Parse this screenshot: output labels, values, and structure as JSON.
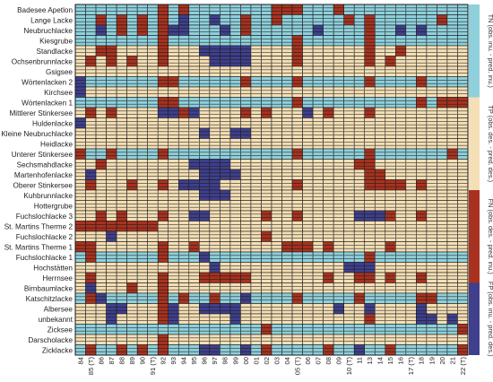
{
  "colors": {
    "TN": "#8ed0dc",
    "TP": "#f4dfb6",
    "FN": "#a8321f",
    "FP": "#3f3f8c",
    "cell_border": "#1a1a1a",
    "sub_line": "#1a1a1a"
  },
  "chart_data": {
    "type": "heatmap",
    "title": "",
    "legend": {
      "placement": "right",
      "entries": [
        "TN (obs. inu. - pred. inu.)",
        "TP (obs. des. - pred. des.)",
        "FN (obs. des. - pred. inu.)",
        "FP (obs. inu. - pred. des.)"
      ]
    },
    "x_labels": [
      "84",
      "85 (T)",
      "86",
      "87",
      "88",
      "89",
      "90",
      "91 (T)",
      "92",
      "93",
      "94",
      "95",
      "96",
      "97",
      "98",
      "99",
      "00",
      "01",
      "02",
      "03",
      "04",
      "05 (T)",
      "06",
      "07",
      "08",
      "09",
      "10 (T)",
      "11",
      "13",
      "14",
      "15",
      "16",
      "17 (T)",
      "18",
      "19",
      "20",
      "21",
      "22 (T)"
    ],
    "sites": [
      {
        "name": "Badesee Apetlon",
        "cells": "NNNNNNNNRNNNNNNNNNNRRNNNNNNNNNNNNNNNNN",
        "special": {
          "8": "F",
          "10": "F",
          "20": "F",
          "21": "F",
          "25": "F"
        }
      },
      {
        "name": "Lange Lacke",
        "cells": "NNNNNNNNNNNNNNNNNNNNNNNNNNNNNNNNNNNNNN",
        "special": {
          "2": "F",
          "4": "F",
          "6": "F",
          "8": "F",
          "10": "P",
          "13": "P",
          "16": "F",
          "19": "F",
          "26": "F",
          "28": "F",
          "35": "F"
        }
      },
      {
        "name": "Neubruchlacke",
        "cells": "NNNNNNNNNNNNNNNNNNNNNNNNNNNNNNNNNNNNNN",
        "special": {
          "2": "P",
          "4": "F",
          "6": "F",
          "8": "F",
          "9": "P",
          "10": "P",
          "14": "P",
          "16": "F",
          "23": "P",
          "28": "F",
          "31": "P",
          "33": "P"
        }
      },
      {
        "name": "Kiesgrube",
        "cells": "NNNNNNNNNNNNNNNNNNNNNNNNNNNNNNNNNNNNNN",
        "special": {
          "8": "F",
          "21": "F",
          "28": "F"
        }
      },
      {
        "name": "Standlacke",
        "cells": "TTTTTTTTTTTTTTTTTTTTTTTTTTTTTTTTTTTTTT",
        "special": {
          "2": "F",
          "3": "F",
          "8": "F",
          "12": "P",
          "13": "P",
          "14": "P",
          "15": "P",
          "16": "P",
          "21": "F",
          "28": "F",
          "31": "F"
        }
      },
      {
        "name": "Ochsenbrunnlacke",
        "cells": "TTTTTTTTTTTTTTTTTTTTTTTTTTTTTTTTTTTTTT",
        "special": {
          "1": "F",
          "3": "F",
          "5": "F",
          "8": "F",
          "13": "P",
          "14": "P",
          "15": "P",
          "16": "P",
          "21": "F",
          "28": "F",
          "30": "F"
        }
      },
      {
        "name": "Gsigsee",
        "cells": "TTTTTTTTTTTTTTTTTTTTTTTTTTTTTTTTTTTTTT",
        "special": {}
      },
      {
        "name": "Wörtenlacken 2",
        "cells": "NNNNNNNNNNNNNNNNNNNNNNNNNNNNNNNNNNNNNN",
        "special": {
          "0": "P",
          "8": "F",
          "9": "F",
          "16": "F",
          "21": "F",
          "28": "F",
          "33": "F"
        }
      },
      {
        "name": "Kirchsee",
        "cells": "TTTTTTTTTTTTTTTTTTTTTTTTTTTTTTTTTTTTTT",
        "special": {
          "0": "P"
        }
      },
      {
        "name": "Wörtenlacken 1",
        "cells": "NNNNNNNNNNNNNNNNNNNNNNNNNNNNNNNNNNNNNN",
        "special": {
          "8": "F",
          "9": "F",
          "21": "F",
          "33": "F",
          "35": "F",
          "36": "F",
          "37": "F"
        }
      },
      {
        "name": "Mittlerer Stinkersee",
        "cells": "TTTTTTTTTTTTTTTTTTTTTTTTTTTTTTTTTTTTTT",
        "special": {
          "1": "F",
          "3": "F",
          "8": "P",
          "9": "P",
          "10": "F",
          "11": "P",
          "16": "F",
          "18": "F",
          "22": "P",
          "24": "F",
          "28": "F"
        }
      },
      {
        "name": "Huldenlacke",
        "cells": "TTTTTTTTTTTTTTTTTTTTTTTTTTTTTTTTTTTTTT",
        "special": {
          "0": "P"
        }
      },
      {
        "name": "Kleine Neubruchlacke",
        "cells": "TTTTTTTTTTTTTTTTTTTTTTTTTTTTTTTTTTTTTT",
        "special": {
          "12": "P",
          "15": "P",
          "16": "P"
        }
      },
      {
        "name": "Heidlacke",
        "cells": "TTTTTTTTTTTTTTTTTTTTTTTTTTTTTTTTTTTTTT",
        "special": {}
      },
      {
        "name": "Unterer Stinkersee",
        "cells": "NNNNNNNNNNNNNNNNNNNNNNNNNNNNNNNNNNNNNN",
        "special": {
          "0": "F",
          "3": "F",
          "8": "F",
          "21": "F",
          "28": "F",
          "36": "F"
        }
      },
      {
        "name": "Sechsmahdlacke",
        "cells": "TTTTTTTTTTTTTTTTTTTTTTTTTTTTTTTTTTTTTT",
        "special": {
          "2": "F",
          "11": "P",
          "12": "P",
          "13": "P",
          "14": "P",
          "27": "F",
          "28": "F"
        }
      },
      {
        "name": "Martenhofenlacke",
        "cells": "TTTTTTTTTTTTTTTTTTTTTTTTTTTTTTTTTTTTTT",
        "special": {
          "1": "P",
          "12": "P",
          "13": "P",
          "14": "P",
          "15": "P",
          "28": "F",
          "29": "F"
        }
      },
      {
        "name": "Oberer Stinkersee",
        "cells": "TTTTTTTTTTTTTTTTTTTTTTTTTTTTTTTTTTTTTT",
        "special": {
          "1": "F",
          "5": "F",
          "8": "F",
          "10": "P",
          "11": "P",
          "12": "P",
          "13": "P",
          "21": "F",
          "28": "F",
          "29": "F",
          "30": "F",
          "31": "F",
          "33": "F"
        }
      },
      {
        "name": "Kuhbrunnlacke",
        "cells": "TTTTTTTTTTTTTTTTTTTTTTTTTTTTTTTTTTTTTT",
        "special": {
          "12": "P",
          "13": "P",
          "14": "P"
        }
      },
      {
        "name": "Hottergrube",
        "cells": "TTTTTTTTTTTTTTTTTTTTTTTTTTTTTTTTTTTTTT",
        "special": {}
      },
      {
        "name": "Fuchslochlacke 3",
        "cells": "TTTTTTTTTTTTTTTTTTTTTTTTTTTTTTTTTTTTTT",
        "special": {
          "2": "F",
          "4": "F",
          "8": "F",
          "11": "P",
          "12": "P",
          "18": "F",
          "21": "F",
          "27": "P",
          "28": "P",
          "29": "P",
          "30": "F",
          "33": "F"
        }
      },
      {
        "name": "St. Martins Therme 2",
        "cells": "FFFFFFFFTTTTTTTTTTTTTTTTTTTTTTTTTTTTTT",
        "special": {}
      },
      {
        "name": "Fuchslochlacke 2",
        "cells": "TTTTTTTTTTTTTTTTTTTTTTTTTTTTTTTTTTTTTT",
        "special": {
          "3": "P",
          "18": "F"
        }
      },
      {
        "name": "St. Martins Therme 1",
        "cells": "TTTTTTTTTTTTTTTTTTTTTTTTTTTTTTTTTTTTTT",
        "special": {
          "0": "F",
          "1": "F",
          "8": "F",
          "11": "F",
          "20": "F",
          "21": "F",
          "22": "F",
          "24": "F",
          "30": "F"
        }
      },
      {
        "name": "Fuchslochlacke 1",
        "cells": "NNNNNNNNNNNNNNNNNNNNNNNNNNNNNNNNNNNNNN",
        "special": {
          "1": "F",
          "8": "F",
          "12": "P",
          "28": "F"
        }
      },
      {
        "name": "Hochstätten",
        "cells": "TTTTTTTTTTTTTTTTTTTTTTTTTTTTTTTTTTTTTT",
        "special": {
          "13": "P",
          "26": "P",
          "27": "P",
          "28": "P"
        }
      },
      {
        "name": "Herrnsee",
        "cells": "TTTTTTTTTTTTTTTTTTTTTTTTTTTTTTTTTTTTTT",
        "special": {
          "1": "F",
          "8": "F",
          "12": "F",
          "13": "F",
          "14": "F",
          "15": "F",
          "16": "F",
          "24": "F",
          "27": "F",
          "28": "F",
          "30": "F",
          "33": "F"
        }
      },
      {
        "name": "Birnbaumlacke",
        "cells": "TTTTTTTTTTTTTTTTTTTTTTTTTTTTTTTTTTTTTT",
        "special": {
          "1": "P",
          "5": "F",
          "8": "F"
        }
      },
      {
        "name": "Katschitzlacke",
        "cells": "NNNNNNNNNNNNNNNNNNNNNNNNNNNNNNNNNNNNNN",
        "special": {
          "1": "F",
          "2": "P",
          "8": "F",
          "10": "F",
          "13": "F",
          "16": "P",
          "21": "F",
          "27": "F",
          "33": "F",
          "34": "F"
        }
      },
      {
        "name": "Albersee",
        "cells": "TTTTTTTTTTTTTTTTTTTTTTTTTTTTTTTTTTTTTT",
        "special": {
          "3": "P",
          "4": "P",
          "8": "F",
          "9": "P",
          "12": "P",
          "13": "P",
          "14": "P",
          "15": "P",
          "25": "P",
          "28": "P",
          "33": "P"
        }
      },
      {
        "name": "unbekannt",
        "cells": "TTTTTTTTTTTTTTTTTTTTTTTTTTTTTTTTTTTTTT",
        "special": {
          "3": "P",
          "8": "F",
          "9": "P",
          "15": "P",
          "28": "F",
          "33": "P",
          "34": "P",
          "36": "P"
        }
      },
      {
        "name": "Zicksee",
        "cells": "NNNNNNNNNNNNNNNNNNNNNNNNNNNNNNNNNNNNNN",
        "special": {
          "18": "F",
          "37": "F"
        }
      },
      {
        "name": "Darscholacke",
        "cells": "TTTTTTTTTTTTTTTTTTTTTTTTTTTTTTTTTTTTTT",
        "special": {
          "8": "F"
        }
      },
      {
        "name": "Zicklacke",
        "cells": "NNNNNNNNNNNNNNNNNNNNNNNNNNNNNNNNNNNNNN",
        "special": {
          "1": "F",
          "4": "F",
          "6": "F",
          "8": "F",
          "12": "P",
          "13": "P",
          "16": "P",
          "18": "F",
          "24": "F",
          "27": "P",
          "30": "F",
          "37": "F"
        }
      }
    ]
  }
}
